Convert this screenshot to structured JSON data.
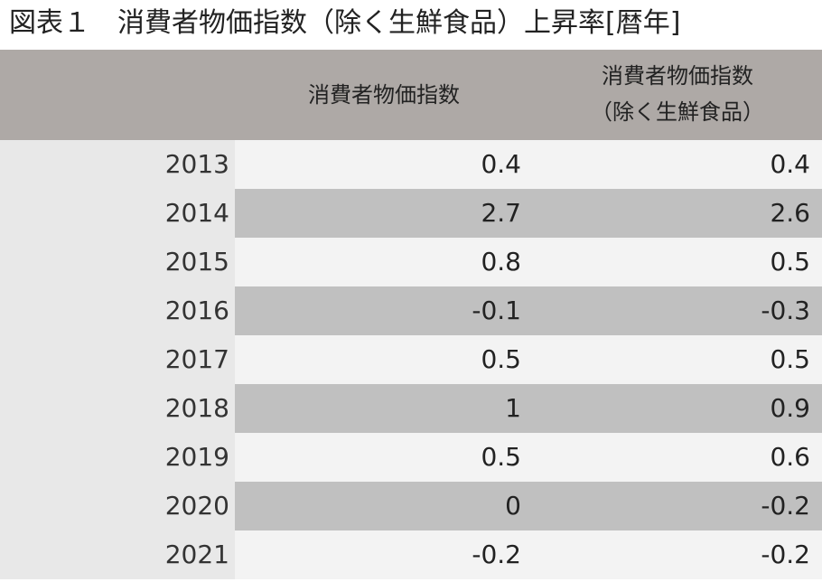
{
  "title": "図表１　消費者物価指数（除く生鮮食品）上昇率[暦年]",
  "table": {
    "headers": [
      "消費者物価指数",
      [
        "消費者物価指数",
        "（除く生鮮食品）"
      ]
    ],
    "rows": [
      [
        "2013",
        "0.4",
        "0.4"
      ],
      [
        "2014",
        "2.7",
        "2.6"
      ],
      [
        "2015",
        "0.8",
        "0.5"
      ],
      [
        "2016",
        "-0.1",
        "-0.3"
      ],
      [
        "2017",
        "0.5",
        "0.5"
      ],
      [
        "2018",
        "1",
        "0.9"
      ],
      [
        "2019",
        "0.5",
        "0.6"
      ],
      [
        "2020",
        "0",
        "-0.2"
      ],
      [
        "2021",
        "-0.2",
        "-0.2"
      ]
    ]
  }
}
